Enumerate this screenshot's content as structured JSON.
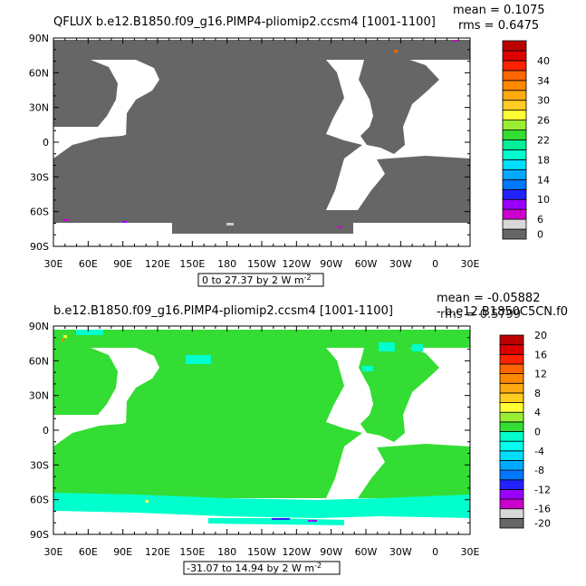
{
  "panels": [
    {
      "title": "QFLUX  b.e12.B1850.f09_g16.PIMP4-pliomip2.ccsm4  [1001-1100]",
      "stats": {
        "mean": "mean = 0.1075",
        "rms": "rms = 0.6475"
      },
      "range_label": "0 to 27.37 by 2  W m",
      "range_exp": "-2",
      "colorbar": {
        "colors": [
          "#666666",
          "#d8d8d8",
          "#cc00cc",
          "#9900ff",
          "#2222ff",
          "#0077ff",
          "#00aaff",
          "#00ddff",
          "#00ffcc",
          "#00ee99",
          "#33dd33",
          "#99ee33",
          "#ffff33",
          "#ffcc22",
          "#ffaa11",
          "#ff8800",
          "#ff6600",
          "#ff2200",
          "#dd0000",
          "#bb0000"
        ],
        "labels": [
          "0",
          "6",
          "10",
          "14",
          "18",
          "22",
          "26",
          "30",
          "34",
          "40"
        ]
      }
    },
    {
      "title": "b.e12.B1850.f09_g16.PIMP4-pliomip2.ccsm4  [1001-1100]",
      "extra_title": "- b.e12.B1850C5CN.f0",
      "stats": {
        "mean": "mean = -0.05882",
        "rms": "rms = 0.5799"
      },
      "range_label": "-31.07 to 14.94 by 2  W m",
      "range_exp": "-2",
      "colorbar": {
        "colors": [
          "#666666",
          "#d8d8d8",
          "#cc00cc",
          "#9900ff",
          "#2222ff",
          "#0077ff",
          "#00aaff",
          "#00ddff",
          "#00ffee",
          "#00ffcc",
          "#33dd33",
          "#99ee33",
          "#ffff33",
          "#ffcc22",
          "#ffaa11",
          "#ff8800",
          "#ff6600",
          "#ff2200",
          "#dd0000",
          "#bb0000"
        ],
        "labels": [
          "-20",
          "-16",
          "-12",
          "-8",
          "-4",
          "0",
          "4",
          "8",
          "12",
          "16",
          "20"
        ]
      }
    }
  ],
  "axes": {
    "lat_ticks": [
      "90N",
      "60N",
      "30N",
      "0",
      "30S",
      "60S",
      "90S"
    ],
    "lon_ticks": [
      "30E",
      "60E",
      "90E",
      "120E",
      "150E",
      "180",
      "150W",
      "120W",
      "90W",
      "60W",
      "30W",
      "0",
      "30E"
    ]
  },
  "chart_data": [
    {
      "type": "heatmap",
      "title": "QFLUX  b.e12.B1850.f09_g16.PIMP4-pliomip2.ccsm4  [1001-1100]",
      "xlabel": "",
      "ylabel": "",
      "xlim": [
        30,
        390
      ],
      "ylim": [
        -90,
        90
      ],
      "xticks": [
        "30E",
        "60E",
        "90E",
        "120E",
        "150E",
        "180",
        "150W",
        "120W",
        "90W",
        "60W",
        "30W",
        "0",
        "30E"
      ],
      "yticks": [
        "90N",
        "60N",
        "30N",
        "0",
        "30S",
        "60S",
        "90S"
      ],
      "mean": 0.1075,
      "rms": 0.6475,
      "contour_range": [
        0,
        27.37
      ],
      "contour_interval": 2,
      "units": "W m-2",
      "colorbar_levels": [
        0,
        6,
        10,
        14,
        18,
        22,
        26,
        30,
        34,
        40
      ],
      "dominant_ocean_value": "0-2 (gray)"
    },
    {
      "type": "heatmap",
      "title": "b.e12.B1850.f09_g16.PIMP4-pliomip2.ccsm4  [1001-1100] - b.e12.B1850C5CN.f0",
      "xlabel": "",
      "ylabel": "",
      "xlim": [
        30,
        390
      ],
      "ylim": [
        -90,
        90
      ],
      "xticks": [
        "30E",
        "60E",
        "90E",
        "120E",
        "150E",
        "180",
        "150W",
        "120W",
        "90W",
        "60W",
        "30W",
        "0",
        "30E"
      ],
      "yticks": [
        "90N",
        "60N",
        "30N",
        "0",
        "30S",
        "60S",
        "90S"
      ],
      "mean": -0.05882,
      "rms": 0.5799,
      "contour_range": [
        -31.07,
        14.94
      ],
      "contour_interval": 2,
      "units": "W m-2",
      "colorbar_levels": [
        -20,
        -16,
        -12,
        -8,
        -4,
        0,
        4,
        8,
        12,
        16,
        20
      ],
      "dominant_ocean_value": "0 to 2 (green)",
      "southern_ocean_value": "-2 to 0 (cyan)"
    }
  ]
}
